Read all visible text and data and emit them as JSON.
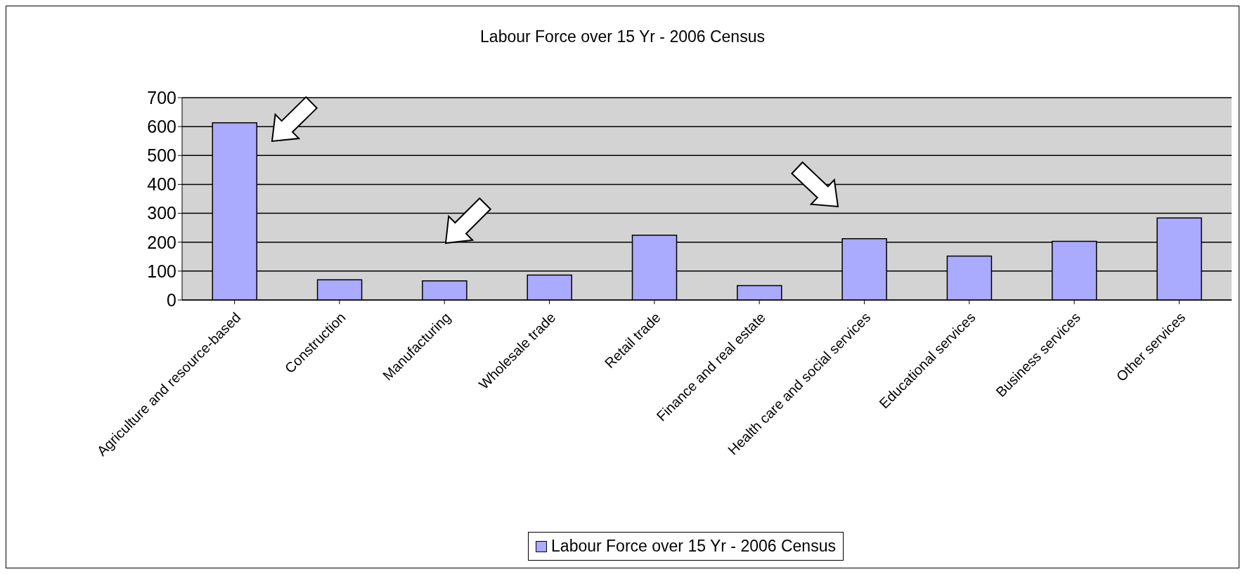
{
  "chart_data": {
    "type": "bar",
    "title": "Labour Force over 15 Yr - 2006 Census",
    "categories": [
      "Agriculture and resource-based",
      "Construction",
      "Manufacturing",
      "Wholesale trade",
      "Retail trade",
      "Finance and real estate",
      "Health care and social services",
      "Educational services",
      "Business services",
      "Other services"
    ],
    "series": [
      {
        "name": "Labour Force over 15 Yr - 2006 Census",
        "color": "#aaaaff",
        "values": [
          613,
          70,
          66,
          86,
          224,
          50,
          212,
          152,
          203,
          284
        ]
      }
    ],
    "ylim": [
      0,
      700
    ],
    "yticks": [
      0,
      100,
      200,
      300,
      400,
      500,
      600,
      700
    ],
    "grid": "y",
    "legend": "bottom"
  }
}
